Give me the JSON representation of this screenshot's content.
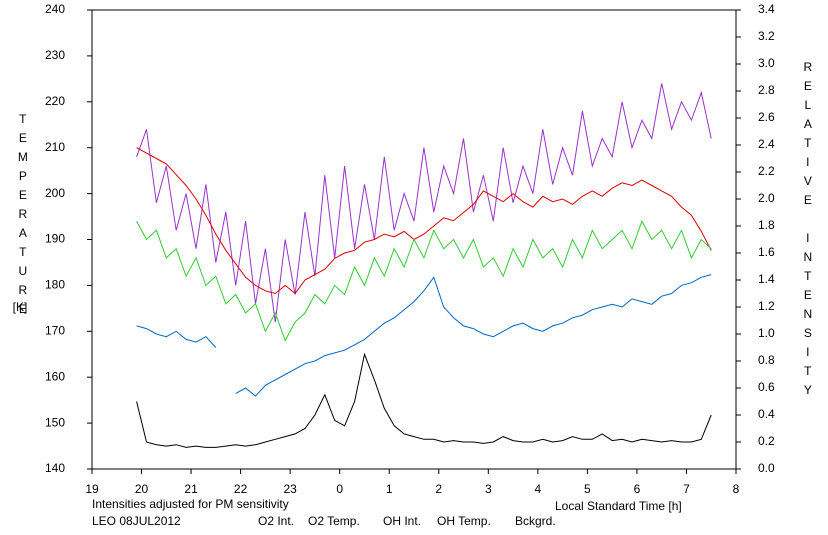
{
  "chart_data": {
    "type": "line",
    "left_axis_label": "TEMPERATURE",
    "left_axis_unit": "[K]",
    "right_axis_label": "RELATIVE INTENSITY",
    "x_axis_label": "Local Standard Time [h]",
    "note": "Intensities adjusted for PM sensitivity",
    "site_date": "LEO 08JUL2012",
    "xlim": [
      19,
      32
    ],
    "xticks": [
      19,
      20,
      21,
      22,
      23,
      {
        "value": 24,
        "label": "0"
      },
      {
        "value": 25,
        "label": "1"
      },
      {
        "value": 26,
        "label": "2"
      },
      {
        "value": 27,
        "label": "3"
      },
      {
        "value": 28,
        "label": "4"
      },
      {
        "value": 29,
        "label": "5"
      },
      {
        "value": 30,
        "label": "6"
      },
      {
        "value": 31,
        "label": "7"
      },
      {
        "value": 32,
        "label": "8"
      }
    ],
    "ylim": [
      140,
      240
    ],
    "yticks": [
      140,
      150,
      160,
      170,
      180,
      190,
      200,
      210,
      220,
      230,
      240
    ],
    "y2lim": [
      0,
      3.4
    ],
    "y2ticks": [
      {
        "value": 0,
        "label": "0.0"
      },
      0.2,
      0.4,
      0.6,
      0.8,
      {
        "value": 1,
        "label": "1.0"
      },
      1.2,
      1.4,
      1.6,
      1.8,
      {
        "value": 2,
        "label": "2.0"
      },
      2.2,
      2.4,
      2.6,
      2.8,
      {
        "value": 3,
        "label": "3.0"
      },
      3.2,
      3.4
    ],
    "x": [
      19.9,
      20.1,
      20.3,
      20.5,
      20.7,
      20.9,
      21.1,
      21.3,
      21.5,
      21.7,
      21.9,
      22.1,
      22.3,
      22.5,
      22.7,
      22.9,
      23.1,
      23.3,
      23.5,
      23.7,
      23.9,
      24.1,
      24.3,
      24.5,
      24.7,
      24.9,
      25.1,
      25.3,
      25.5,
      25.7,
      25.9,
      26.1,
      26.3,
      26.5,
      26.7,
      26.9,
      27.1,
      27.3,
      27.5,
      27.7,
      27.9,
      28.1,
      28.3,
      28.5,
      28.7,
      28.9,
      29.1,
      29.3,
      29.5,
      29.7,
      29.9,
      30.1,
      30.3,
      30.5,
      30.7,
      30.9,
      31.1,
      31.3,
      31.5
    ],
    "series": [
      {
        "name": "O2 Int.",
        "color": "#0066cc",
        "axis": "y2",
        "values": [
          1.06,
          1.04,
          1.0,
          0.98,
          1.02,
          0.96,
          0.94,
          0.98,
          0.9,
          null,
          0.56,
          0.6,
          0.54,
          0.62,
          0.66,
          0.7,
          0.74,
          0.78,
          0.8,
          0.84,
          0.86,
          0.88,
          0.92,
          0.96,
          1.02,
          1.08,
          1.12,
          1.18,
          1.24,
          1.32,
          1.42,
          1.2,
          1.12,
          1.06,
          1.04,
          1.0,
          0.98,
          1.02,
          1.06,
          1.08,
          1.04,
          1.02,
          1.06,
          1.08,
          1.12,
          1.14,
          1.18,
          1.2,
          1.22,
          1.2,
          1.26,
          1.24,
          1.22,
          1.28,
          1.3,
          1.36,
          1.38,
          1.42,
          1.44
        ]
      },
      {
        "name": "O2 Temp.",
        "color": "#9933cc",
        "axis": "y",
        "values": [
          208,
          214,
          198,
          206,
          192,
          200,
          188,
          202,
          185,
          196,
          180,
          194,
          176,
          188,
          172,
          190,
          178,
          196,
          182,
          204,
          186,
          206,
          188,
          202,
          190,
          208,
          192,
          200,
          194,
          210,
          196,
          206,
          200,
          212,
          196,
          204,
          194,
          210,
          198,
          206,
          200,
          214,
          202,
          210,
          204,
          218,
          206,
          212,
          208,
          220,
          210,
          216,
          212,
          224,
          214,
          220,
          216,
          222,
          212
        ]
      },
      {
        "name": "OH Int.",
        "color": "#e00000",
        "axis": "y2",
        "values": [
          2.38,
          2.34,
          2.3,
          2.26,
          2.18,
          2.1,
          2.0,
          1.88,
          1.74,
          1.62,
          1.52,
          1.42,
          1.36,
          1.32,
          1.3,
          1.36,
          1.3,
          1.4,
          1.44,
          1.48,
          1.56,
          1.6,
          1.62,
          1.68,
          1.7,
          1.74,
          1.72,
          1.76,
          1.7,
          1.74,
          1.8,
          1.86,
          1.84,
          1.9,
          1.96,
          2.06,
          2.02,
          1.98,
          2.04,
          1.98,
          1.94,
          2.02,
          1.98,
          2.0,
          1.96,
          2.02,
          2.06,
          2.02,
          2.08,
          2.12,
          2.1,
          2.14,
          2.1,
          2.06,
          2.02,
          1.94,
          1.88,
          1.76,
          1.62
        ]
      },
      {
        "name": "OH Temp.",
        "color": "#33cc33",
        "axis": "y",
        "values": [
          194,
          190,
          192,
          186,
          188,
          182,
          186,
          180,
          182,
          176,
          178,
          174,
          176,
          170,
          174,
          168,
          172,
          174,
          178,
          176,
          180,
          178,
          184,
          180,
          186,
          182,
          188,
          184,
          190,
          186,
          192,
          188,
          190,
          186,
          190,
          184,
          186,
          182,
          188,
          184,
          190,
          186,
          188,
          184,
          190,
          186,
          192,
          188,
          190,
          192,
          188,
          194,
          190,
          192,
          188,
          192,
          186,
          190,
          188
        ]
      },
      {
        "name": "Bckgrd.",
        "color": "#000000",
        "axis": "y2",
        "values": [
          0.5,
          0.2,
          0.18,
          0.17,
          0.18,
          0.16,
          0.17,
          0.16,
          0.16,
          0.17,
          0.18,
          0.17,
          0.18,
          0.2,
          0.22,
          0.24,
          0.26,
          0.3,
          0.4,
          0.55,
          0.36,
          0.32,
          0.5,
          0.85,
          0.66,
          0.45,
          0.32,
          0.26,
          0.24,
          0.22,
          0.22,
          0.2,
          0.21,
          0.2,
          0.2,
          0.19,
          0.2,
          0.24,
          0.21,
          0.2,
          0.2,
          0.22,
          0.2,
          0.21,
          0.24,
          0.22,
          0.22,
          0.26,
          0.21,
          0.22,
          0.2,
          0.22,
          0.21,
          0.2,
          0.21,
          0.2,
          0.2,
          0.22,
          0.4
        ]
      }
    ],
    "note_color": "#33cc33"
  }
}
